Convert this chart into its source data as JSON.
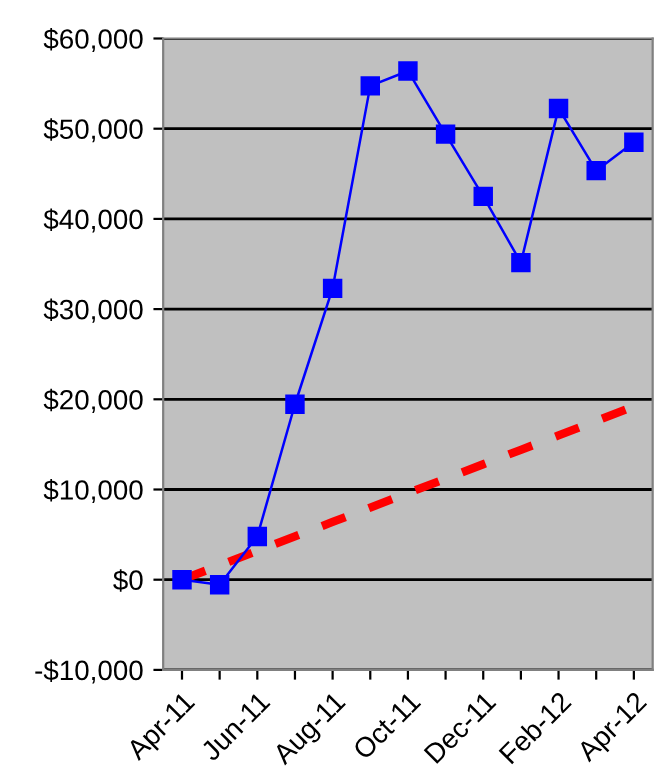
{
  "chart_data": {
    "type": "line",
    "categories": [
      "Apr-11",
      null,
      "Jun-11",
      null,
      "Aug-11",
      null,
      "Oct-11",
      null,
      "Dec-11",
      null,
      "Feb-12",
      null,
      "Apr-12"
    ],
    "series": [
      {
        "color": "#0000ff",
        "marker": "square",
        "line_style": "solid",
        "values": [
          0,
          -550,
          4800,
          19450,
          32300,
          54750,
          56400,
          49400,
          42500,
          35150,
          52250,
          45350,
          48500
        ]
      },
      {
        "color": "#ff0000",
        "marker": "none",
        "line_style": "dashed",
        "values": [
          0,
          1600,
          3200,
          4800,
          6400,
          8000,
          9600,
          11200,
          12800,
          14400,
          16000,
          17600,
          19200
        ]
      }
    ],
    "ylim": [
      -10000,
      60000
    ],
    "yticks": [
      {
        "value": -10000,
        "label": "-$10,000"
      },
      {
        "value": 0,
        "label": "$0"
      },
      {
        "value": 10000,
        "label": "$10,000"
      },
      {
        "value": 20000,
        "label": "$20,000"
      },
      {
        "value": 30000,
        "label": "$30,000"
      },
      {
        "value": 40000,
        "label": "$40,000"
      },
      {
        "value": 50000,
        "label": "$50,000"
      },
      {
        "value": 60000,
        "label": "$60,000"
      }
    ],
    "grid": "y",
    "legend": false
  }
}
